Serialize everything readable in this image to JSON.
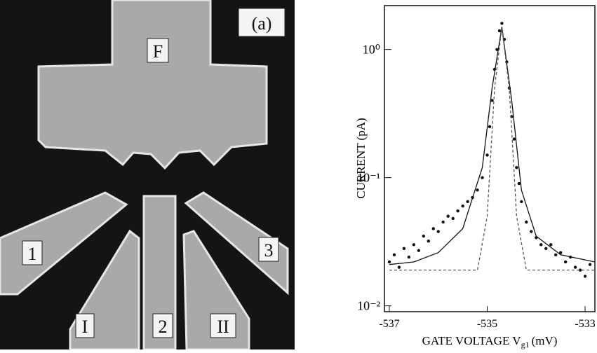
{
  "micrograph": {
    "panel_label": "(a)",
    "labels": [
      "F",
      "1",
      "2",
      "3",
      "I",
      "II"
    ]
  },
  "chart_data": {
    "type": "scatter",
    "log_y": true,
    "ylabel": "CURRENT (pA)",
    "xlabel": [
      "GATE VOLTAGE V",
      "g1",
      "(mV)"
    ],
    "xlim": [
      -537.1,
      -532.8
    ],
    "xticks": [
      -537,
      -535,
      -533
    ],
    "ylim": [
      0.009,
      2.2
    ],
    "yticks": [
      {
        "value": 1,
        "label": "10⁰"
      },
      {
        "value": 0.1,
        "label": "10⁻¹"
      },
      {
        "value": 0.01,
        "label": "10⁻²"
      }
    ],
    "series": [
      {
        "style": "points",
        "color": "#111111",
        "x": [
          -537.0,
          -536.9,
          -536.8,
          -536.7,
          -536.6,
          -536.5,
          -536.4,
          -536.3,
          -536.2,
          -536.1,
          -536.0,
          -535.9,
          -535.8,
          -535.7,
          -535.6,
          -535.5,
          -535.4,
          -535.3,
          -535.2,
          -535.1,
          -535.0,
          -534.95,
          -534.9,
          -534.85,
          -534.8,
          -534.75,
          -534.7,
          -534.65,
          -534.6,
          -534.55,
          -534.5,
          -534.45,
          -534.4,
          -534.35,
          -534.3,
          -534.2,
          -534.1,
          -534.0,
          -533.9,
          -533.8,
          -533.7,
          -533.6,
          -533.5,
          -533.4,
          -533.3,
          -533.2,
          -533.1,
          -533.0,
          -532.9
        ],
        "values": [
          0.022,
          0.025,
          0.02,
          0.028,
          0.024,
          0.03,
          0.027,
          0.035,
          0.032,
          0.04,
          0.038,
          0.045,
          0.05,
          0.048,
          0.055,
          0.06,
          0.065,
          0.07,
          0.08,
          0.1,
          0.15,
          0.25,
          0.4,
          0.7,
          1.0,
          1.4,
          1.6,
          1.2,
          0.8,
          0.5,
          0.3,
          0.2,
          0.12,
          0.09,
          0.065,
          0.045,
          0.038,
          0.034,
          0.03,
          0.028,
          0.03,
          0.025,
          0.026,
          0.022,
          0.024,
          0.02,
          0.019,
          0.017,
          0.021
        ]
      },
      {
        "style": "solid",
        "color": "#111111",
        "x": [
          -537.0,
          -536.5,
          -536.0,
          -535.5,
          -535.1,
          -534.9,
          -534.7,
          -534.5,
          -534.3,
          -534.0,
          -533.5,
          -532.8
        ],
        "values": [
          0.021,
          0.022,
          0.026,
          0.04,
          0.12,
          0.5,
          1.5,
          0.4,
          0.08,
          0.035,
          0.025,
          0.022
        ]
      },
      {
        "style": "dashed",
        "color": "#555555",
        "x": [
          -537.0,
          -535.2,
          -535.0,
          -534.85,
          -534.7,
          -534.55,
          -534.4,
          -534.2,
          -532.8
        ],
        "values": [
          0.019,
          0.019,
          0.05,
          0.5,
          1.5,
          0.5,
          0.05,
          0.019,
          0.019
        ]
      }
    ]
  }
}
